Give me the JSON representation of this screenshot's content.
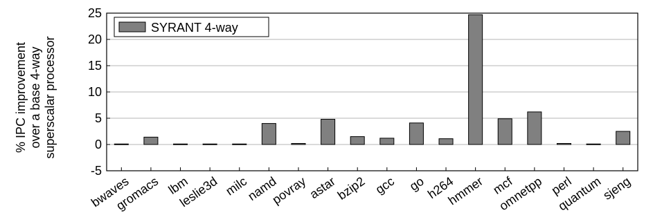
{
  "chart_data": {
    "type": "bar",
    "title": "",
    "ylabel": "% IPC improvement over a base 4-way superscalar processor",
    "ylabel_lines": [
      "% IPC improvement",
      "over a base 4-way",
      "superscalar processor"
    ],
    "xlabel": "",
    "ylim": [
      -5,
      25
    ],
    "yticks": [
      -5,
      0,
      5,
      10,
      15,
      20,
      25
    ],
    "grid": "horizontal",
    "legend_position": "top-left",
    "categories": [
      "bwaves",
      "gromacs",
      "lbm",
      "leslie3d",
      "milc",
      "namd",
      "povray",
      "astar",
      "bzip2",
      "gcc",
      "go",
      "h264",
      "hmmer",
      "mcf",
      "omnetpp",
      "perl",
      "quantum",
      "sjeng"
    ],
    "series": [
      {
        "name": "SYRANT 4-way",
        "color": "#808080",
        "values": [
          0.1,
          1.4,
          0.1,
          0.1,
          0.1,
          4.0,
          0.2,
          4.8,
          1.5,
          1.2,
          4.1,
          1.1,
          24.7,
          4.9,
          6.2,
          0.2,
          0.1,
          2.5
        ]
      }
    ]
  }
}
